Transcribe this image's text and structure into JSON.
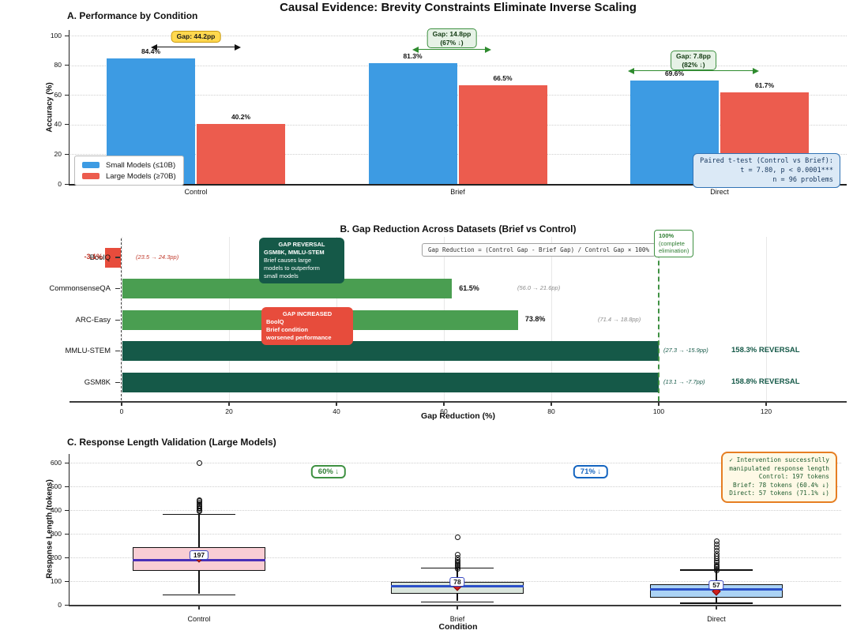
{
  "main_title": "Causal Evidence: Brevity Constraints Eliminate Inverse Scaling",
  "chart_data": [
    {
      "panel": "A",
      "type": "bar",
      "title": "A. Performance by Condition",
      "ylabel": "Accuracy (%)",
      "ylim": [
        0,
        104
      ],
      "yticks": [
        0,
        20,
        40,
        60,
        80,
        100
      ],
      "categories": [
        "Control",
        "Brief",
        "Direct"
      ],
      "series": [
        {
          "name": "Small Models (≤10B)",
          "color": "#3d9be3",
          "values": [
            84.4,
            81.3,
            69.6
          ]
        },
        {
          "name": "Large Models (≥70B)",
          "color": "#ec5c4e",
          "values": [
            40.2,
            66.5,
            61.7
          ]
        }
      ],
      "legend_position": "lower left",
      "gap_annotations": [
        {
          "category": "Control",
          "lines": [
            "Gap: 44.2pp"
          ],
          "style": "yellow"
        },
        {
          "category": "Brief",
          "lines": [
            "Gap: 14.8pp",
            "(67% ↓)"
          ],
          "style": "green"
        },
        {
          "category": "Direct",
          "lines": [
            "Gap: 7.8pp",
            "(82% ↓)"
          ],
          "style": "green"
        }
      ],
      "stats_box": {
        "lines": [
          "Paired t-test (Control vs Brief):",
          "t = 7.80, p < 0.0001***",
          "n = 96 problems"
        ],
        "bg": "#dbe9f6",
        "border": "#3173b5",
        "text_color": "#17375e"
      }
    },
    {
      "panel": "B",
      "type": "barh",
      "title": "B. Gap Reduction Across Datasets (Brief vs Control)",
      "xlabel": "Gap Reduction (%)",
      "xlim": [
        -10,
        135
      ],
      "xticks": [
        0,
        20,
        40,
        60,
        80,
        100,
        120
      ],
      "rows": [
        {
          "label": "BoolQ",
          "value": -3.1,
          "bar_value": -3.1,
          "color": "#e74c3c",
          "value_label": "-3.1%",
          "value_label_color": "#c0392b",
          "annotation": "(23.5 → 24.3pp)",
          "annotation_color": "#c0392b"
        },
        {
          "label": "CommonsenseQA",
          "value": 61.5,
          "bar_value": 61.5,
          "color": "#4a9e51",
          "value_label": "61.5%",
          "value_label_color": "#111111",
          "annotation": "(56.0 → 21.6pp)",
          "annotation_color": "#8a8a8a"
        },
        {
          "label": "ARC-Easy",
          "value": 73.8,
          "bar_value": 73.8,
          "color": "#4a9e51",
          "value_label": "73.8%",
          "value_label_color": "#111111",
          "annotation": "(71.4 → 18.8pp)",
          "annotation_color": "#8a8a8a"
        },
        {
          "label": "MMLU-STEM",
          "value": 158.3,
          "bar_value": 100,
          "color": "#155948",
          "value_label": "",
          "annotation": "(27.3 → -15.9pp)",
          "annotation_color": "#155948",
          "reversal_label": "158.3% REVERSAL"
        },
        {
          "label": "GSM8K",
          "value": 158.8,
          "bar_value": 100,
          "color": "#155948",
          "value_label": "",
          "annotation": "(13.1 → -7.7pp)",
          "annotation_color": "#155948",
          "reversal_label": "158.8% REVERSAL"
        }
      ],
      "zero_line": 0,
      "reference_line": {
        "x": 100,
        "color": "#3f9142",
        "label_lines": [
          "100%",
          "(complete",
          "elimination)"
        ]
      },
      "formula": "Gap Reduction = (Control Gap - Brief Gap) / Control Gap × 100%",
      "callout_reversal": {
        "lines": [
          "GAP REVERSAL",
          "GSM8K, MMLU-STEM",
          "Brief causes large",
          "models to outperform",
          "small models"
        ],
        "bg": "#155948"
      },
      "callout_increased": {
        "lines": [
          "GAP INCREASED",
          "BoolQ",
          "Brief condition",
          "worsened performance"
        ],
        "bg": "#e74c3c"
      }
    },
    {
      "panel": "C",
      "type": "boxplot",
      "title": "C. Response Length Validation (Large Models)",
      "xlabel": "Condition",
      "ylabel": "Response Length (tokens)",
      "ylim": [
        0,
        640
      ],
      "yticks": [
        0,
        100,
        200,
        300,
        400,
        500,
        600
      ],
      "boxes": [
        {
          "label": "Control",
          "whisker_low": 45,
          "q1": 143,
          "median": 190,
          "q3": 243,
          "whisker_high": 385,
          "mean": 197,
          "mean_label": "197",
          "fill": "#f9cdd4",
          "median_color": "#4a2fb8",
          "outliers": [
            394,
            399,
            404,
            409,
            414,
            419,
            425,
            431,
            437,
            443,
            600
          ]
        },
        {
          "label": "Brief",
          "whisker_low": 15,
          "q1": 47,
          "median": 77,
          "q3": 97,
          "whisker_high": 158,
          "mean": 78,
          "mean_label": "78",
          "fill": "#d9e5dc",
          "median_color": "#2b50c8",
          "outliers": [
            152,
            158,
            164,
            170,
            176,
            183,
            190,
            198,
            213,
            285
          ]
        },
        {
          "label": "Direct",
          "whisker_low": 10,
          "q1": 30,
          "median": 65,
          "q3": 87,
          "whisker_high": 150,
          "mean": 57,
          "mean_label": "57",
          "fill": "#abd3f5",
          "median_color": "#2b50c8",
          "outliers": [
            145,
            151,
            157,
            163,
            170,
            177,
            185,
            194,
            204,
            215,
            228,
            242,
            255,
            267
          ]
        }
      ],
      "reduction_badges": [
        {
          "text": "60% ↓",
          "color": "#2e7d32",
          "border": "#3f9142"
        },
        {
          "text": "71% ↓",
          "color": "#1565c0",
          "border": "#1565c0"
        }
      ],
      "info_box": {
        "lines": [
          "✓ Intervention successfully",
          "manipulated response length",
          "Control: 197 tokens",
          "Brief: 78 tokens (60.4% ↓)",
          "Direct: 57 tokens (71.1% ↓)"
        ],
        "bg": "#fef9e6",
        "border": "#e67e22",
        "text_color": "#1e5c2e"
      }
    }
  ]
}
